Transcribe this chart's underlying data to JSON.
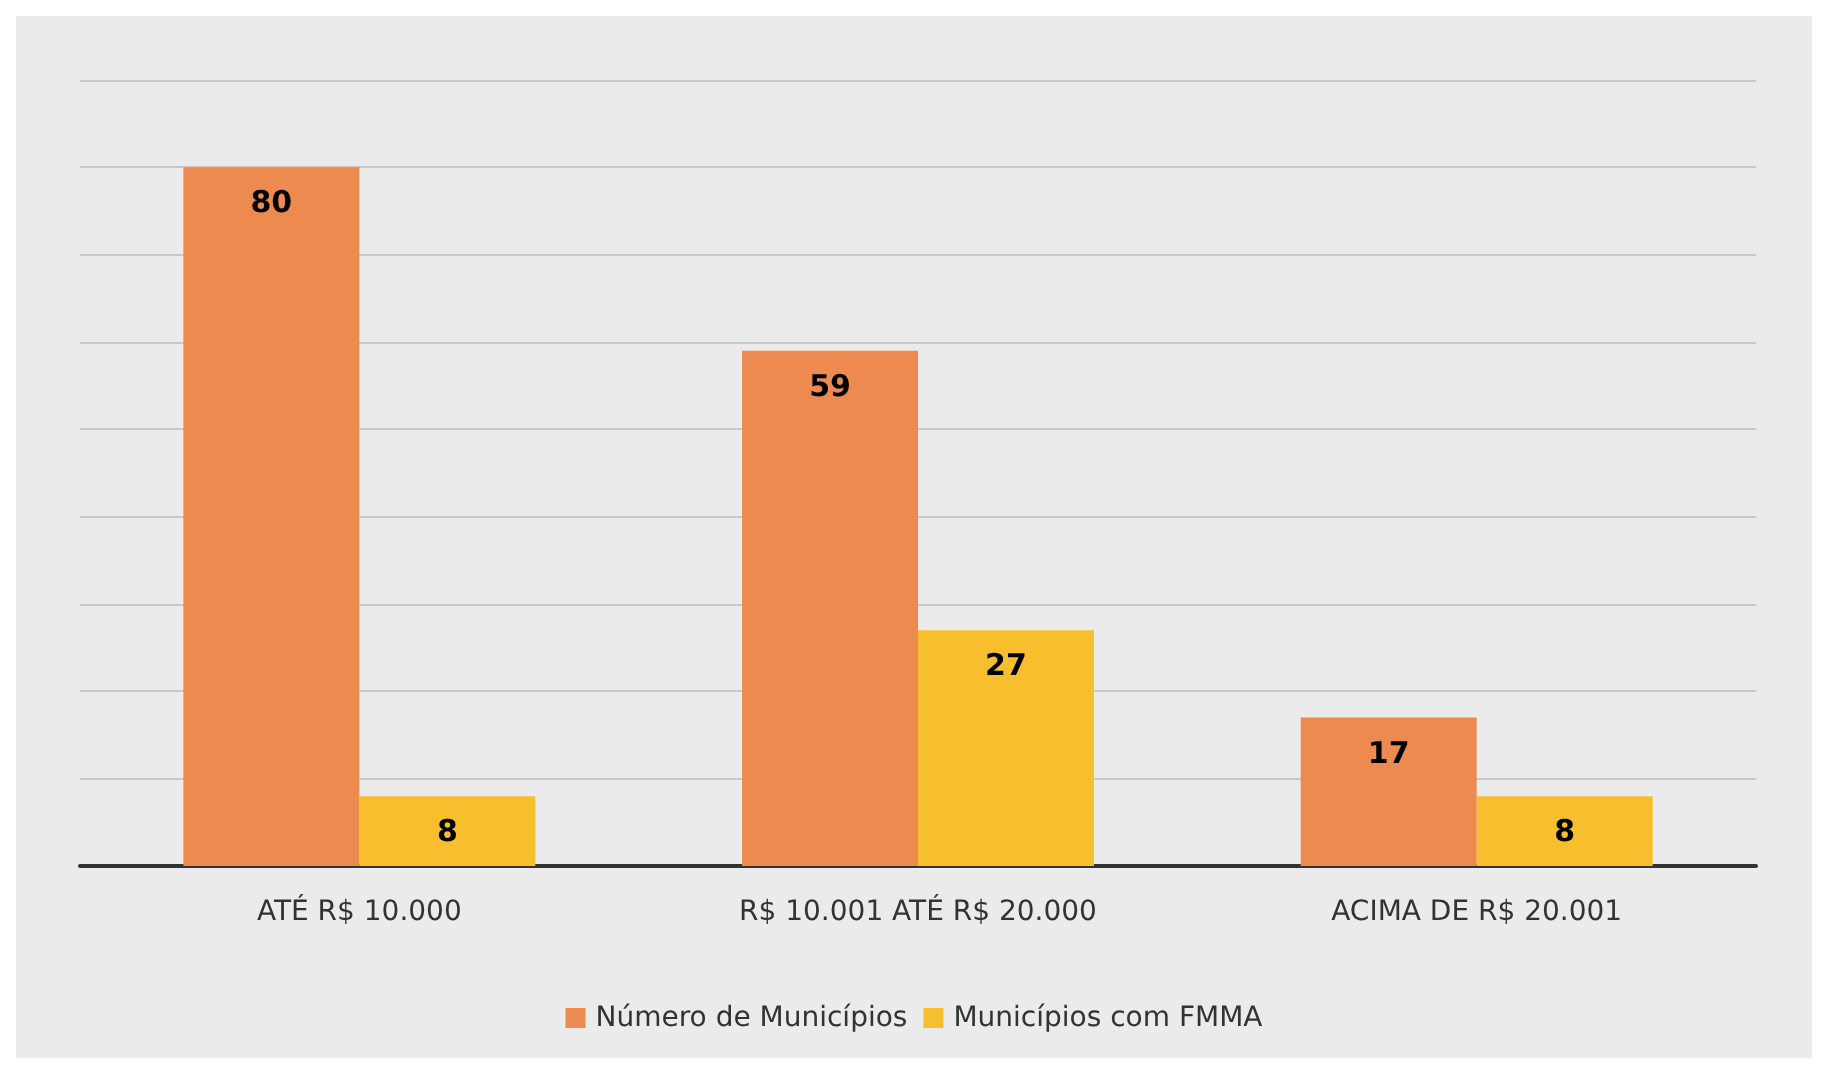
{
  "chart_data": {
    "type": "bar",
    "categories": [
      "ATÉ R$ 10.000",
      "R$ 10.001 ATÉ R$ 20.000",
      "ACIMA DE R$ 20.001"
    ],
    "series": [
      {
        "name": "Número de Municípios",
        "color": "#ed8a4f",
        "values": [
          80,
          59,
          17
        ]
      },
      {
        "name": "Municípios com FMMA",
        "color": "#f7bf2e",
        "values": [
          8,
          27,
          8
        ]
      }
    ],
    "ylim": [
      0,
      90
    ],
    "yticks": [
      {
        "value": 0,
        "label": null
      },
      {
        "value": 10,
        "label": null
      },
      {
        "value": 20,
        "label": null
      },
      {
        "value": 30,
        "label": null
      },
      {
        "value": 40,
        "label": null
      },
      {
        "value": 50,
        "label": null
      },
      {
        "value": 60,
        "label": null
      },
      {
        "value": 70,
        "label": null
      },
      {
        "value": 80,
        "label": null
      },
      {
        "value": 90,
        "label": null
      }
    ],
    "tick_labels": "x",
    "grid": "y",
    "data_labels": true,
    "legend": "bottom"
  }
}
